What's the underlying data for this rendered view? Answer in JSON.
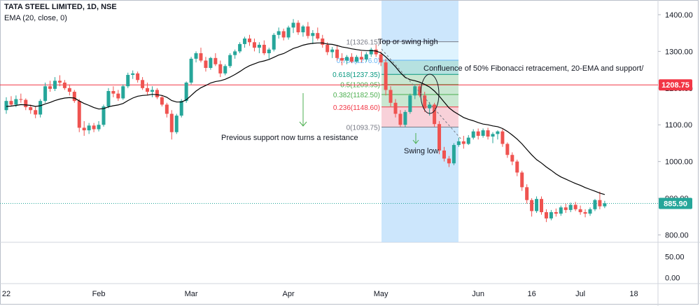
{
  "header": {
    "title": "TATA STEEL LIMITED, 1D, NSE",
    "indicator": "EMA (20, close, 0)"
  },
  "annotations": {
    "top": "Top or swing high",
    "confluence": "Confluence of 50% Fibonacci retracement, 20-EMA and support/",
    "prev_support": "Previous support now turns a resistance",
    "swing_low": "Swing low"
  },
  "price_labels": {
    "resistance": "1208.75",
    "last": "885.90"
  },
  "colors": {
    "up": "#26a69a",
    "down": "#ef5350",
    "ema": "#000000",
    "resistance_line": "#f23645",
    "last_price": "#26a69a",
    "fib_box": "#bbdefb",
    "arrow": "#4caf50"
  },
  "chart_data": {
    "type": "candlestick",
    "title": "TATA STEEL LIMITED, 1D, NSE",
    "ylim": [
      780,
      1440
    ],
    "yticks": [
      800,
      900,
      1000,
      1100,
      1200,
      1300,
      1400
    ],
    "ytick_labels": [
      "800.00",
      "900.00",
      "1000.00",
      "1100.00",
      "1200.00",
      "1300.00",
      "1400.00"
    ],
    "sub_panel": {
      "ylim": [
        -12,
        80
      ],
      "ticks": [
        0,
        50
      ],
      "tick_labels": [
        "0.00",
        "50.00"
      ]
    },
    "x_labels": [
      {
        "label": "22",
        "i": 0
      },
      {
        "label": "Feb",
        "i": 19
      },
      {
        "label": "Mar",
        "i": 38
      },
      {
        "label": "Apr",
        "i": 58
      },
      {
        "label": "May",
        "i": 77
      },
      {
        "label": "Jun",
        "i": 97
      },
      {
        "label": "16",
        "i": 108
      },
      {
        "label": "Jul",
        "i": 118
      },
      {
        "label": "18",
        "i": 129
      }
    ],
    "resistance_level": 1208.75,
    "last_price": 885.9,
    "fibonacci": [
      {
        "ratio": "1",
        "price": 1326.15,
        "label": "1(1326.15)",
        "color": "#787b86"
      },
      {
        "ratio": "0.786",
        "price": 1276.0,
        "label": "0.786(1276.0)",
        "color": "#64b5f6"
      },
      {
        "ratio": "0.618",
        "price": 1237.35,
        "label": "0.618(1237.35)",
        "color": "#089981"
      },
      {
        "ratio": "0.5",
        "price": 1209.95,
        "label": "0.5(1209.95)",
        "color": "#4caf50"
      },
      {
        "ratio": "0.382",
        "price": 1182.5,
        "label": "0.382(1182.50)",
        "color": "#4caf50"
      },
      {
        "ratio": "0.236",
        "price": 1148.6,
        "label": "0.236(1148.60)",
        "color": "#f23645"
      },
      {
        "ratio": "0",
        "price": 1093.75,
        "label": "0(1093.75)",
        "color": "#787b86"
      }
    ],
    "ohlc": [
      [
        1140,
        1175,
        1130,
        1165
      ],
      [
        1165,
        1178,
        1150,
        1155
      ],
      [
        1155,
        1180,
        1148,
        1170
      ],
      [
        1170,
        1185,
        1160,
        1168
      ],
      [
        1168,
        1172,
        1140,
        1148
      ],
      [
        1148,
        1155,
        1130,
        1140
      ],
      [
        1140,
        1150,
        1118,
        1128
      ],
      [
        1128,
        1170,
        1120,
        1165
      ],
      [
        1165,
        1215,
        1160,
        1205
      ],
      [
        1205,
        1220,
        1190,
        1198
      ],
      [
        1198,
        1230,
        1192,
        1220
      ],
      [
        1220,
        1235,
        1205,
        1215
      ],
      [
        1215,
        1222,
        1195,
        1200
      ],
      [
        1200,
        1210,
        1180,
        1190
      ],
      [
        1190,
        1195,
        1160,
        1165
      ],
      [
        1165,
        1170,
        1080,
        1092
      ],
      [
        1092,
        1110,
        1070,
        1085
      ],
      [
        1085,
        1105,
        1075,
        1098
      ],
      [
        1098,
        1105,
        1080,
        1088
      ],
      [
        1088,
        1110,
        1082,
        1100
      ],
      [
        1100,
        1155,
        1095,
        1150
      ],
      [
        1150,
        1200,
        1145,
        1192
      ],
      [
        1192,
        1205,
        1175,
        1185
      ],
      [
        1185,
        1195,
        1165,
        1172
      ],
      [
        1172,
        1210,
        1168,
        1205
      ],
      [
        1205,
        1242,
        1200,
        1236
      ],
      [
        1236,
        1248,
        1225,
        1240
      ],
      [
        1240,
        1245,
        1215,
        1222
      ],
      [
        1222,
        1230,
        1195,
        1200
      ],
      [
        1200,
        1215,
        1180,
        1190
      ],
      [
        1190,
        1205,
        1175,
        1195
      ],
      [
        1195,
        1200,
        1170,
        1175
      ],
      [
        1175,
        1180,
        1150,
        1155
      ],
      [
        1155,
        1160,
        1120,
        1130
      ],
      [
        1130,
        1140,
        1060,
        1080
      ],
      [
        1080,
        1130,
        1075,
        1125
      ],
      [
        1125,
        1170,
        1120,
        1165
      ],
      [
        1165,
        1218,
        1160,
        1215
      ],
      [
        1215,
        1285,
        1210,
        1280
      ],
      [
        1280,
        1300,
        1270,
        1295
      ],
      [
        1295,
        1310,
        1270,
        1275
      ],
      [
        1275,
        1285,
        1245,
        1255
      ],
      [
        1255,
        1285,
        1250,
        1282
      ],
      [
        1282,
        1295,
        1260,
        1265
      ],
      [
        1265,
        1275,
        1230,
        1240
      ],
      [
        1240,
        1265,
        1235,
        1260
      ],
      [
        1260,
        1295,
        1255,
        1290
      ],
      [
        1290,
        1305,
        1280,
        1300
      ],
      [
        1300,
        1325,
        1295,
        1320
      ],
      [
        1320,
        1340,
        1310,
        1335
      ],
      [
        1335,
        1345,
        1315,
        1325
      ],
      [
        1325,
        1335,
        1300,
        1310
      ],
      [
        1310,
        1325,
        1295,
        1318
      ],
      [
        1318,
        1330,
        1290,
        1295
      ],
      [
        1295,
        1310,
        1280,
        1305
      ],
      [
        1305,
        1350,
        1300,
        1345
      ],
      [
        1345,
        1365,
        1335,
        1355
      ],
      [
        1355,
        1362,
        1330,
        1338
      ],
      [
        1338,
        1370,
        1332,
        1365
      ],
      [
        1365,
        1388,
        1350,
        1378
      ],
      [
        1378,
        1385,
        1345,
        1352
      ],
      [
        1352,
        1372,
        1340,
        1368
      ],
      [
        1368,
        1380,
        1335,
        1342
      ],
      [
        1342,
        1358,
        1320,
        1350
      ],
      [
        1350,
        1365,
        1330,
        1335
      ],
      [
        1335,
        1345,
        1310,
        1318
      ],
      [
        1318,
        1325,
        1290,
        1298
      ],
      [
        1298,
        1312,
        1282,
        1305
      ],
      [
        1305,
        1315,
        1275,
        1282
      ],
      [
        1282,
        1295,
        1262,
        1275
      ],
      [
        1275,
        1290,
        1265,
        1285
      ],
      [
        1285,
        1295,
        1268,
        1272
      ],
      [
        1272,
        1290,
        1268,
        1285
      ],
      [
        1285,
        1300,
        1270,
        1278
      ],
      [
        1278,
        1298,
        1272,
        1292
      ],
      [
        1292,
        1310,
        1285,
        1305
      ],
      [
        1305,
        1318,
        1285,
        1292
      ],
      [
        1292,
        1300,
        1260,
        1270
      ],
      [
        1270,
        1280,
        1180,
        1195
      ],
      [
        1195,
        1205,
        1150,
        1160
      ],
      [
        1160,
        1170,
        1120,
        1130
      ],
      [
        1130,
        1140,
        1095,
        1100
      ],
      [
        1100,
        1140,
        1093,
        1135
      ],
      [
        1135,
        1185,
        1130,
        1180
      ],
      [
        1180,
        1210,
        1170,
        1205
      ],
      [
        1205,
        1212,
        1175,
        1180
      ],
      [
        1180,
        1190,
        1135,
        1145
      ],
      [
        1145,
        1162,
        1125,
        1155
      ],
      [
        1155,
        1160,
        1095,
        1102
      ],
      [
        1102,
        1110,
        1020,
        1030
      ],
      [
        1030,
        1040,
        1000,
        1008
      ],
      [
        1008,
        1015,
        985,
        995
      ],
      [
        995,
        1050,
        990,
        1045
      ],
      [
        1045,
        1065,
        1040,
        1055
      ],
      [
        1055,
        1070,
        1035,
        1048
      ],
      [
        1048,
        1072,
        1045,
        1065
      ],
      [
        1065,
        1088,
        1060,
        1082
      ],
      [
        1082,
        1090,
        1060,
        1070
      ],
      [
        1070,
        1090,
        1065,
        1085
      ],
      [
        1085,
        1092,
        1060,
        1068
      ],
      [
        1068,
        1080,
        1050,
        1075
      ],
      [
        1075,
        1085,
        1060,
        1082
      ],
      [
        1082,
        1088,
        1040,
        1048
      ],
      [
        1048,
        1052,
        1010,
        1018
      ],
      [
        1018,
        1025,
        990,
        1000
      ],
      [
        1000,
        1005,
        960,
        970
      ],
      [
        970,
        975,
        920,
        930
      ],
      [
        930,
        938,
        885,
        895
      ],
      [
        895,
        900,
        850,
        865
      ],
      [
        865,
        905,
        860,
        898
      ],
      [
        898,
        905,
        855,
        862
      ],
      [
        862,
        870,
        835,
        845
      ],
      [
        845,
        868,
        840,
        862
      ],
      [
        862,
        872,
        850,
        858
      ],
      [
        858,
        880,
        852,
        875
      ],
      [
        875,
        885,
        860,
        868
      ],
      [
        868,
        888,
        862,
        882
      ],
      [
        882,
        890,
        865,
        870
      ],
      [
        870,
        880,
        855,
        862
      ],
      [
        862,
        870,
        848,
        858
      ],
      [
        858,
        875,
        852,
        870
      ],
      [
        870,
        898,
        865,
        895
      ],
      [
        895,
        918,
        870,
        878
      ],
      [
        878,
        893,
        873,
        886
      ]
    ],
    "ema20": [
      1150,
      1151,
      1153,
      1155,
      1154,
      1153,
      1150,
      1152,
      1157,
      1161,
      1166,
      1170,
      1173,
      1174,
      1173,
      1165,
      1158,
      1153,
      1147,
      1143,
      1144,
      1149,
      1152,
      1154,
      1158,
      1166,
      1173,
      1178,
      1180,
      1181,
      1183,
      1182,
      1180,
      1175,
      1166,
      1162,
      1162,
      1168,
      1180,
      1192,
      1201,
      1207,
      1214,
      1218,
      1220,
      1224,
      1230,
      1237,
      1245,
      1254,
      1261,
      1266,
      1271,
      1274,
      1278,
      1284,
      1290,
      1294,
      1301,
      1308,
      1312,
      1317,
      1320,
      1322,
      1323,
      1323,
      1320,
      1319,
      1316,
      1312,
      1310,
      1307,
      1305,
      1303,
      1302,
      1302,
      1301,
      1296,
      1285,
      1272,
      1258,
      1242,
      1229,
      1223,
      1220,
      1216,
      1210,
      1203,
      1192,
      1178,
      1162,
      1146,
      1136,
      1128,
      1120,
      1115,
      1111,
      1106,
      1102,
      1100,
      1097,
      1095,
      1090,
      1082,
      1072,
      1061,
      1048,
      1033,
      1018,
      1005,
      996,
      985,
      976,
      966,
      958,
      952,
      946,
      940,
      935,
      929,
      924,
      919,
      914,
      910
    ]
  },
  "series_labels": {
    "ema": "EMA (20, close, 0)"
  }
}
